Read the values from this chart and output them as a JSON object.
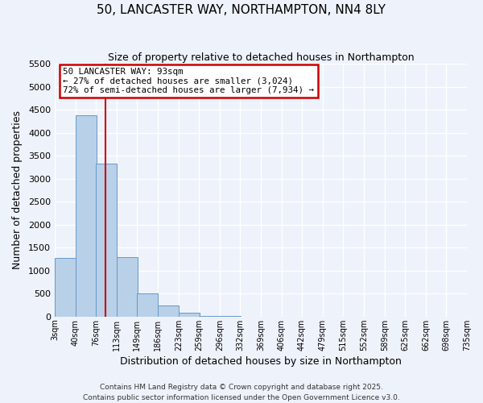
{
  "title": "50, LANCASTER WAY, NORTHAMPTON, NN4 8LY",
  "subtitle": "Size of property relative to detached houses in Northampton",
  "xlabel": "Distribution of detached houses by size in Northampton",
  "ylabel": "Number of detached properties",
  "bar_left_edges": [
    3,
    40,
    76,
    113,
    149,
    186,
    223,
    259,
    296,
    332,
    369,
    406,
    442,
    479,
    515,
    552,
    589,
    625,
    662,
    698
  ],
  "bar_heights": [
    1270,
    4380,
    3320,
    1290,
    510,
    240,
    80,
    20,
    5,
    2,
    1,
    0,
    0,
    0,
    0,
    0,
    0,
    0,
    0,
    0
  ],
  "bin_width": 37,
  "bar_color": "#b8d0e8",
  "bar_edge_color": "#6699cc",
  "property_line_x": 93,
  "annotation_title": "50 LANCASTER WAY: 93sqm",
  "annotation_line1": "← 27% of detached houses are smaller (3,024)",
  "annotation_line2": "72% of semi-detached houses are larger (7,934) →",
  "annotation_box_color": "#ffffff",
  "annotation_box_edge": "#cc0000",
  "property_line_color": "#cc0000",
  "ylim": [
    0,
    5500
  ],
  "yticks": [
    0,
    500,
    1000,
    1500,
    2000,
    2500,
    3000,
    3500,
    4000,
    4500,
    5000,
    5500
  ],
  "xtick_labels": [
    "3sqm",
    "40sqm",
    "76sqm",
    "113sqm",
    "149sqm",
    "186sqm",
    "223sqm",
    "259sqm",
    "296sqm",
    "332sqm",
    "369sqm",
    "406sqm",
    "442sqm",
    "479sqm",
    "515sqm",
    "552sqm",
    "589sqm",
    "625sqm",
    "662sqm",
    "698sqm",
    "735sqm"
  ],
  "xtick_positions": [
    3,
    40,
    76,
    113,
    149,
    186,
    223,
    259,
    296,
    332,
    369,
    406,
    442,
    479,
    515,
    552,
    589,
    625,
    662,
    698,
    735
  ],
  "background_color": "#eef2fa",
  "grid_color": "#ffffff",
  "footer1": "Contains HM Land Registry data © Crown copyright and database right 2025.",
  "footer2": "Contains public sector information licensed under the Open Government Licence v3.0."
}
